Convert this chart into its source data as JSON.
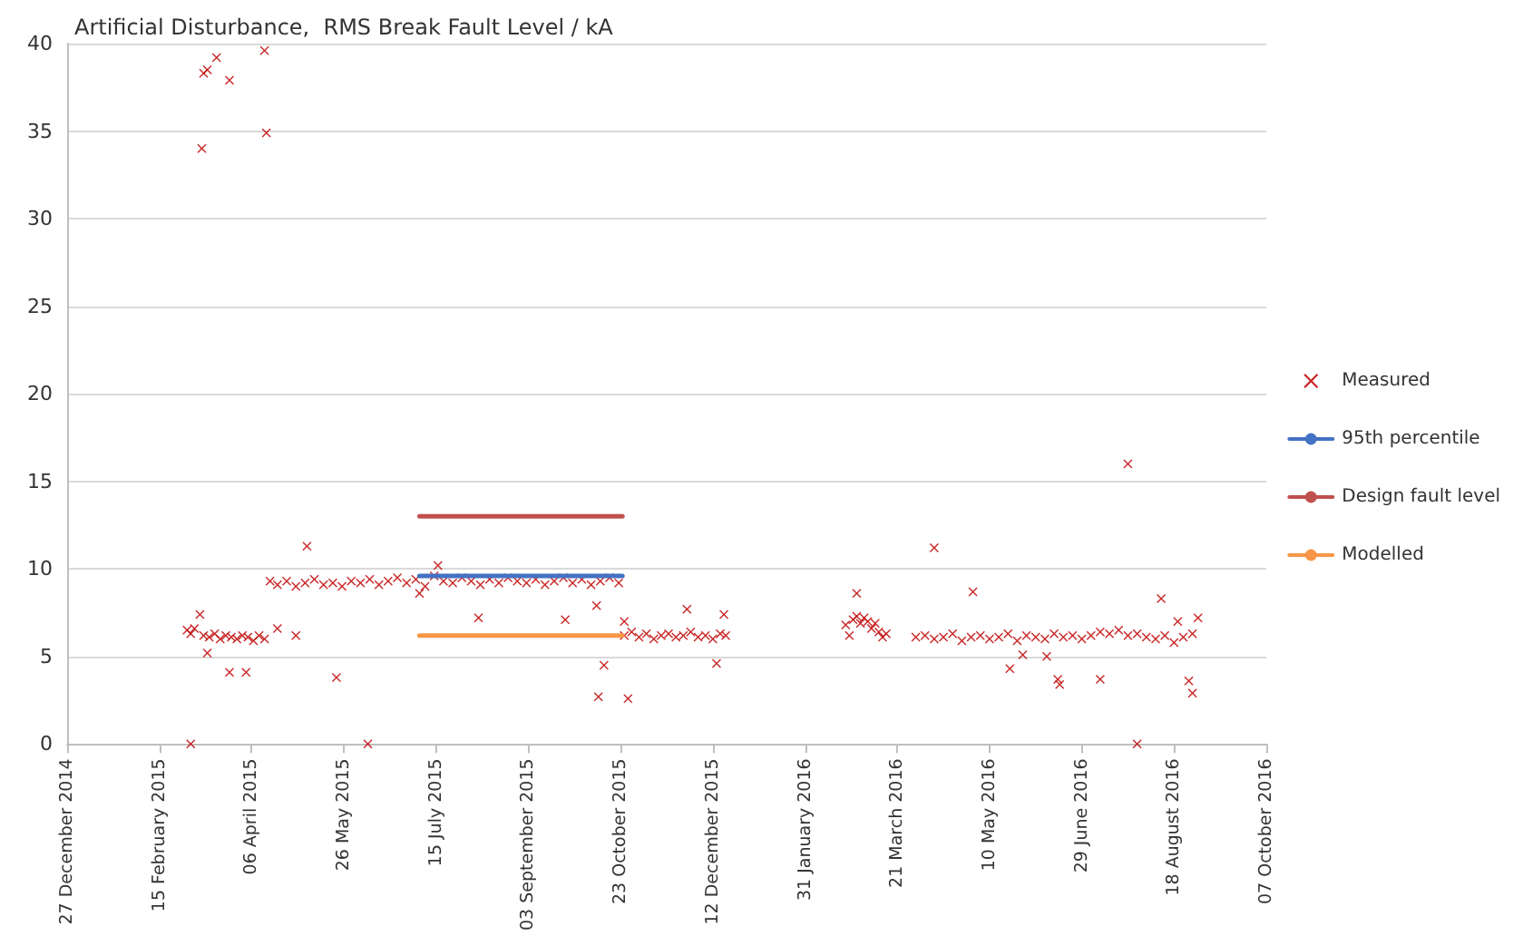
{
  "chart_data": {
    "type": "scatter",
    "title": "Artificial Disturbance,  RMS Break Fault Level / kA",
    "xlim": [
      "2014-12-27",
      "2016-10-07"
    ],
    "xticks": [
      {
        "value": "2014-12-27",
        "label": "27 December 2014"
      },
      {
        "value": "2015-02-15",
        "label": "15 February 2015"
      },
      {
        "value": "2015-04-06",
        "label": "06 April 2015"
      },
      {
        "value": "2015-05-26",
        "label": "26 May 2015"
      },
      {
        "value": "2015-07-15",
        "label": "15 July 2015"
      },
      {
        "value": "2015-09-03",
        "label": "03 September 2015"
      },
      {
        "value": "2015-10-23",
        "label": "23 October 2015"
      },
      {
        "value": "2015-12-12",
        "label": "12 December 2015"
      },
      {
        "value": "2016-01-31",
        "label": "31 January 2016"
      },
      {
        "value": "2016-03-21",
        "label": "21 March 2016"
      },
      {
        "value": "2016-05-10",
        "label": "10 May 2016"
      },
      {
        "value": "2016-06-29",
        "label": "29 June 2016"
      },
      {
        "value": "2016-08-18",
        "label": "18 August 2016"
      },
      {
        "value": "2016-10-07",
        "label": "07 October 2016"
      }
    ],
    "ylim": [
      0,
      40
    ],
    "yticks": [
      0,
      5,
      10,
      15,
      20,
      25,
      30,
      35,
      40
    ],
    "grid": "y",
    "legend": "right",
    "series": [
      {
        "name": "Measured",
        "marker": "cross",
        "color": "#c00000",
        "x": [
          "2015-03-02",
          "2015-03-04",
          "2015-03-06",
          "2015-03-09",
          "2015-03-11",
          "2015-03-14",
          "2015-03-17",
          "2015-03-20",
          "2015-03-23",
          "2015-03-26",
          "2015-03-29",
          "2015-04-01",
          "2015-04-04",
          "2015-04-07",
          "2015-04-10",
          "2015-04-13",
          "2015-04-16",
          "2015-04-20",
          "2015-04-25",
          "2015-04-30",
          "2015-05-05",
          "2015-05-10",
          "2015-05-15",
          "2015-05-20",
          "2015-05-25",
          "2015-05-30",
          "2015-06-04",
          "2015-06-09",
          "2015-06-14",
          "2015-06-19",
          "2015-06-24",
          "2015-06-29",
          "2015-07-04",
          "2015-07-09",
          "2015-07-14",
          "2015-07-19",
          "2015-07-24",
          "2015-07-29",
          "2015-08-03",
          "2015-08-08",
          "2015-08-13",
          "2015-08-18",
          "2015-08-23",
          "2015-08-28",
          "2015-09-02",
          "2015-09-07",
          "2015-09-12",
          "2015-09-17",
          "2015-09-22",
          "2015-09-27",
          "2015-10-02",
          "2015-10-07",
          "2015-10-12",
          "2015-10-17",
          "2015-10-22",
          "2015-10-25",
          "2015-10-29",
          "2015-11-02",
          "2015-11-06",
          "2015-11-10",
          "2015-11-14",
          "2015-11-18",
          "2015-11-22",
          "2015-11-26",
          "2015-11-30",
          "2015-12-04",
          "2015-12-08",
          "2015-12-12",
          "2015-12-16",
          "2015-12-19",
          "2016-02-22",
          "2016-02-24",
          "2016-02-26",
          "2016-02-28",
          "2016-03-01",
          "2016-03-03",
          "2016-03-05",
          "2016-03-07",
          "2016-03-09",
          "2016-03-11",
          "2016-03-13",
          "2016-03-15",
          "2016-03-31",
          "2016-04-05",
          "2016-04-10",
          "2016-04-15",
          "2016-04-20",
          "2016-04-25",
          "2016-04-30",
          "2016-05-05",
          "2016-05-10",
          "2016-05-15",
          "2016-05-20",
          "2016-05-25",
          "2016-05-30",
          "2016-06-04",
          "2016-06-09",
          "2016-06-14",
          "2016-06-19",
          "2016-06-24",
          "2016-06-29",
          "2016-07-04",
          "2016-07-09",
          "2016-07-14",
          "2016-07-19",
          "2016-07-24",
          "2016-07-29",
          "2016-08-03",
          "2016-08-08",
          "2016-08-13",
          "2016-08-18",
          "2016-08-23",
          "2016-08-28",
          "2016-08-31",
          "2015-03-10",
          "2015-03-11",
          "2015-03-13",
          "2015-03-18",
          "2015-03-25",
          "2015-04-13",
          "2015-04-14",
          "2015-03-04",
          "2015-06-08",
          "2016-07-29",
          "2015-05-06",
          "2015-04-20",
          "2015-04-30",
          "2015-03-25",
          "2015-04-03",
          "2015-03-13",
          "2015-05-22",
          "2015-07-06",
          "2015-07-16",
          "2015-08-07",
          "2015-09-23",
          "2015-10-10",
          "2015-10-11",
          "2015-10-14",
          "2015-10-25",
          "2015-10-27",
          "2015-11-28",
          "2015-12-14",
          "2015-12-18",
          "2016-02-28",
          "2016-04-10",
          "2016-05-01",
          "2016-05-21",
          "2016-05-28",
          "2016-06-10",
          "2016-06-16",
          "2016-06-17",
          "2016-07-09",
          "2016-07-24",
          "2016-08-11",
          "2016-08-20",
          "2016-08-26",
          "2016-08-28"
        ],
        "values": [
          6.5,
          6.3,
          6.6,
          7.4,
          6.2,
          6.1,
          6.3,
          6.0,
          6.2,
          6.1,
          6.0,
          6.2,
          6.1,
          5.9,
          6.2,
          6.0,
          9.3,
          9.1,
          9.3,
          9.0,
          9.2,
          9.4,
          9.1,
          9.2,
          9.0,
          9.3,
          9.2,
          9.4,
          9.1,
          9.3,
          9.5,
          9.2,
          9.4,
          9.0,
          9.6,
          9.3,
          9.2,
          9.5,
          9.3,
          9.1,
          9.4,
          9.2,
          9.5,
          9.3,
          9.2,
          9.4,
          9.1,
          9.3,
          9.5,
          9.2,
          9.4,
          9.1,
          9.3,
          9.5,
          9.2,
          6.2,
          6.4,
          6.1,
          6.3,
          6.0,
          6.2,
          6.3,
          6.1,
          6.2,
          6.4,
          6.1,
          6.2,
          6.0,
          6.3,
          6.2,
          6.8,
          6.2,
          7.1,
          7.3,
          6.9,
          7.2,
          7.0,
          6.6,
          6.9,
          6.4,
          6.1,
          6.3,
          6.1,
          6.2,
          6.0,
          6.1,
          6.3,
          5.9,
          6.1,
          6.2,
          6.0,
          6.1,
          6.3,
          5.9,
          6.2,
          6.1,
          6.0,
          6.3,
          6.1,
          6.2,
          6.0,
          6.2,
          6.4,
          6.3,
          6.5,
          6.2,
          6.3,
          6.1,
          6.0,
          6.2,
          5.8,
          6.1,
          6.3,
          7.2,
          34.0,
          38.3,
          38.5,
          39.2,
          37.9,
          39.6,
          34.9,
          0,
          0,
          0,
          11.3,
          6.6,
          6.2,
          4.1,
          4.1,
          5.2,
          3.8,
          8.6,
          10.2,
          7.2,
          7.1,
          7.9,
          2.7,
          4.5,
          7.0,
          2.6,
          7.7,
          4.6,
          7.4,
          8.6,
          11.2,
          8.7,
          4.3,
          5.1,
          5.0,
          3.7,
          3.4,
          3.7,
          16.0,
          8.3,
          7.0,
          3.6,
          2.9
        ]
      },
      {
        "name": "95th percentile",
        "type": "line",
        "marker": "none",
        "color": "#4472c4",
        "x": [
          "2015-07-06",
          "2015-10-24"
        ],
        "values": [
          9.6,
          9.6
        ]
      },
      {
        "name": "Design fault level",
        "type": "line",
        "marker": "none",
        "color": "#c0504d",
        "x": [
          "2015-07-06",
          "2015-10-24"
        ],
        "values": [
          13.0,
          13.0
        ]
      },
      {
        "name": "Modelled",
        "type": "line",
        "marker": "none",
        "color": "#f79646",
        "x": [
          "2015-07-06",
          "2015-10-24"
        ],
        "values": [
          6.2,
          6.2
        ]
      }
    ]
  }
}
